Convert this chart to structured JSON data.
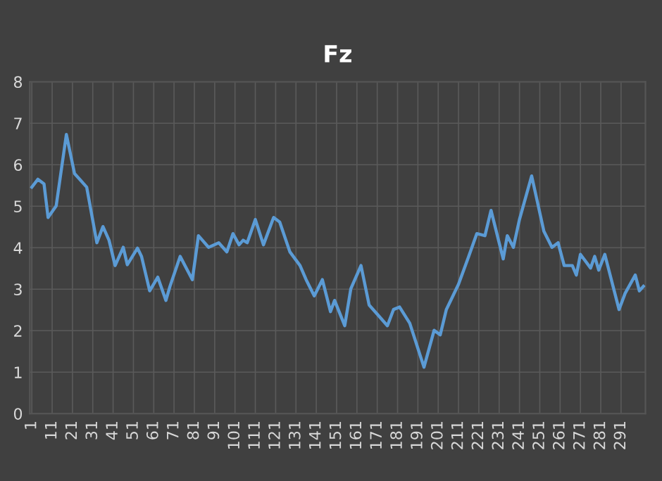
{
  "chart_data": {
    "type": "line",
    "title": "Fz",
    "xlim": [
      0,
      303
    ],
    "xticks": [
      1,
      11,
      21,
      31,
      41,
      51,
      61,
      71,
      81,
      91,
      101,
      111,
      121,
      131,
      141,
      151,
      161,
      171,
      181,
      191,
      201,
      211,
      221,
      231,
      241,
      251,
      261,
      271,
      281,
      291
    ],
    "ylim": [
      0,
      8
    ],
    "yticks": [
      0,
      1,
      2,
      3,
      4,
      5,
      6,
      7,
      8
    ],
    "grid": true,
    "marker": "none",
    "line_style": "solid",
    "series": [
      {
        "color": "#5b9bd5",
        "x": [
          1,
          4,
          7,
          9,
          13,
          18,
          22,
          28,
          33,
          36,
          39,
          42,
          46,
          48,
          53,
          55,
          59,
          63,
          67,
          69,
          74,
          80,
          83,
          88,
          93,
          97,
          100,
          103,
          105,
          107,
          111,
          115,
          120,
          123,
          128,
          133,
          136,
          140,
          144,
          148,
          150,
          155,
          158,
          163,
          167,
          171,
          176,
          179,
          182,
          187,
          194,
          199,
          202,
          205,
          211,
          216,
          220,
          224,
          227,
          233,
          235,
          238,
          241,
          247,
          253,
          257,
          260,
          263,
          267,
          269,
          271,
          276,
          278,
          280,
          283,
          290,
          293,
          298,
          300,
          302
        ],
        "values": [
          5.46,
          5.65,
          5.54,
          4.73,
          5.01,
          6.73,
          5.79,
          5.46,
          4.12,
          4.51,
          4.18,
          3.57,
          4.01,
          3.59,
          3.99,
          3.79,
          2.96,
          3.29,
          2.73,
          3.07,
          3.79,
          3.23,
          4.29,
          4.01,
          4.12,
          3.9,
          4.34,
          4.07,
          4.18,
          4.12,
          4.68,
          4.07,
          4.73,
          4.62,
          3.9,
          3.57,
          3.23,
          2.84,
          3.23,
          2.46,
          2.73,
          2.12,
          3.01,
          3.57,
          2.62,
          2.4,
          2.12,
          2.51,
          2.57,
          2.18,
          1.12,
          2.01,
          1.9,
          2.51,
          3.12,
          3.79,
          4.34,
          4.29,
          4.9,
          3.73,
          4.29,
          4.01,
          4.68,
          5.73,
          4.4,
          4.01,
          4.12,
          3.57,
          3.57,
          3.34,
          3.84,
          3.51,
          3.79,
          3.46,
          3.84,
          2.51,
          2.9,
          3.34,
          2.96,
          3.07
        ]
      }
    ]
  }
}
